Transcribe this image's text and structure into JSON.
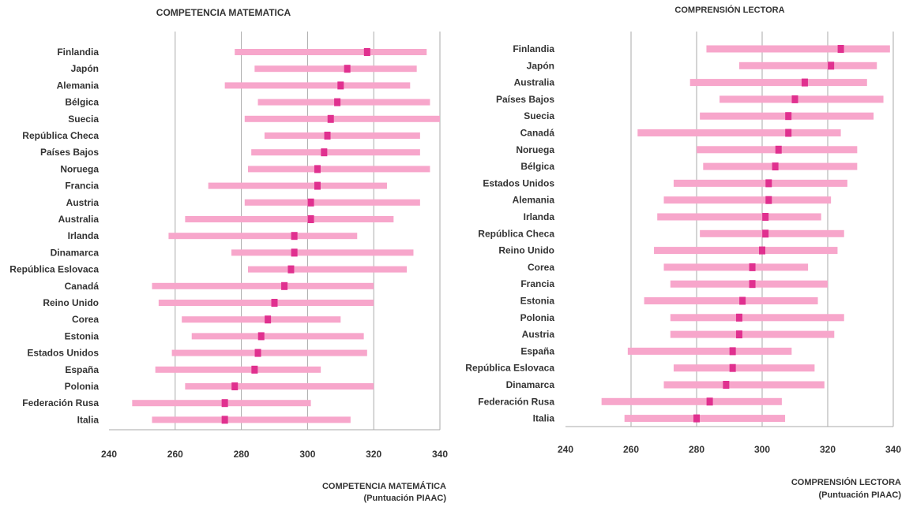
{
  "chart_data": [
    {
      "type": "range-bar",
      "title": "COMPETENCIA MATEMATICA",
      "xlabel": [
        "COMPETENCIA MATEMÁTICA",
        "(Puntuación PIAAC)"
      ],
      "ylabel": "",
      "xlim": [
        240,
        340
      ],
      "xticks": [
        240,
        260,
        280,
        300,
        320,
        340
      ],
      "grid": "vertical",
      "colors": {
        "range": "#f7a6cb",
        "mean": "#e0308f",
        "grid": "#aaaaaa",
        "text": "#333333"
      },
      "categories": [
        "Finlandia",
        "Japón",
        "Alemania",
        "Bélgica",
        "Suecia",
        "República Checa",
        "Países Bajos",
        "Noruega",
        "Francia",
        "Austria",
        "Australia",
        "Irlanda",
        "Dinamarca",
        "República Eslovaca",
        "Canadá",
        "Reino Unido",
        "Corea",
        "Estonia",
        "Estados Unidos",
        "España",
        "Polonia",
        "Federación Rusa",
        "Italia"
      ],
      "low": [
        278,
        284,
        275,
        285,
        281,
        287,
        283,
        282,
        270,
        281,
        263,
        258,
        277,
        282,
        253,
        255,
        262,
        265,
        259,
        254,
        263,
        247,
        253
      ],
      "high": [
        336,
        333,
        331,
        337,
        340,
        334,
        334,
        337,
        324,
        334,
        326,
        315,
        332,
        330,
        320,
        320,
        310,
        317,
        318,
        304,
        320,
        301,
        313
      ],
      "mean": [
        318,
        312,
        310,
        309,
        307,
        306,
        305,
        303,
        303,
        301,
        301,
        296,
        296,
        295,
        293,
        290,
        288,
        286,
        285,
        284,
        278,
        275,
        275
      ]
    },
    {
      "type": "range-bar",
      "title": "COMPRENSIÓN LECTORA",
      "xlabel": [
        "COMPRENSIÓN LECTORA",
        "(Puntuación PIAAC)"
      ],
      "ylabel": "",
      "xlim": [
        240,
        340
      ],
      "xticks": [
        240,
        260,
        280,
        300,
        320,
        340
      ],
      "grid": "vertical",
      "colors": {
        "range": "#f7a6cb",
        "mean": "#e0308f",
        "grid": "#aaaaaa",
        "text": "#333333"
      },
      "categories": [
        "Finlandia",
        "Japón",
        "Australia",
        "Países Bajos",
        "Suecia",
        "Canadá",
        "Noruega",
        "Bélgica",
        "Estados Unidos",
        "Alemania",
        "Irlanda",
        "República Checa",
        "Reino Unido",
        "Corea",
        "Francia",
        "Estonia",
        "Polonia",
        "Austria",
        "España",
        "República Eslovaca",
        "Dinamarca",
        "Federación Rusa",
        "Italia"
      ],
      "low": [
        283,
        293,
        278,
        287,
        281,
        262,
        280,
        282,
        273,
        270,
        268,
        281,
        267,
        270,
        272,
        264,
        272,
        272,
        259,
        273,
        270,
        251,
        258
      ],
      "high": [
        339,
        335,
        332,
        337,
        334,
        324,
        329,
        329,
        326,
        321,
        318,
        325,
        323,
        314,
        320,
        317,
        325,
        322,
        309,
        316,
        319,
        306,
        307
      ],
      "mean": [
        324,
        321,
        313,
        310,
        308,
        308,
        305,
        304,
        302,
        302,
        301,
        301,
        300,
        297,
        297,
        294,
        293,
        293,
        291,
        291,
        289,
        284,
        280
      ]
    }
  ]
}
